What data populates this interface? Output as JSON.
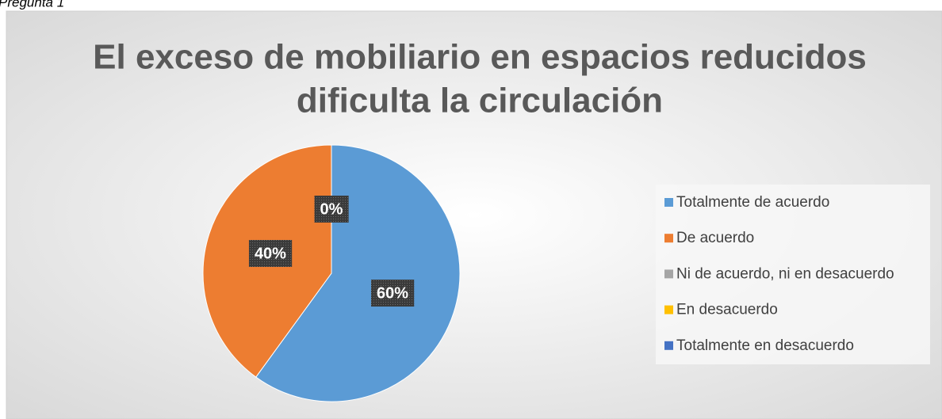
{
  "caption": "Pregunta 1",
  "chart_data": {
    "type": "pie",
    "title": [
      "El exceso de mobiliario en espacios reducidos",
      "dificulta la circulación"
    ],
    "categories": [
      "Totalmente de acuerdo",
      "De acuerdo",
      "Ni de acuerdo, ni en desacuerdo",
      "En desacuerdo",
      "Totalmente en desacuerdo"
    ],
    "values": [
      60,
      40,
      0,
      0,
      0
    ],
    "value_labels": [
      "60%",
      "40%",
      "0%",
      null,
      null
    ],
    "colors": [
      "#5b9bd5",
      "#ed7d31",
      "#a5a5a5",
      "#ffc000",
      "#4472c4"
    ],
    "legend": "right"
  }
}
